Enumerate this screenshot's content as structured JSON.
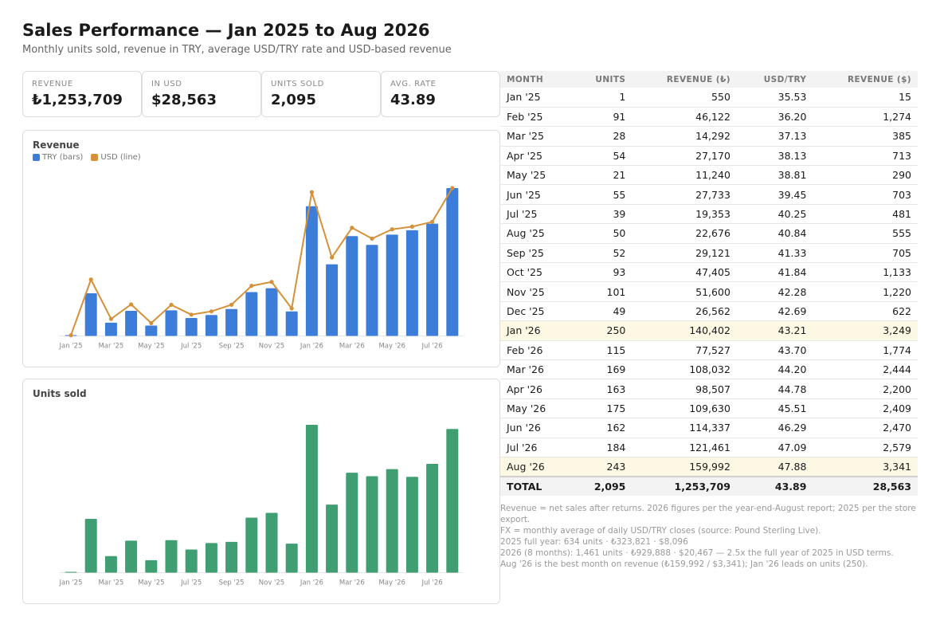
{
  "title": "Sales Performance — Jan 2025 to Aug 2026",
  "subtitle": "Monthly units sold, revenue in TRY, average USD/TRY rate and USD-based revenue",
  "kpis": [
    {
      "label": "REVENUE",
      "value": "₺1,253,709"
    },
    {
      "label": "IN USD",
      "value": "$28,563"
    },
    {
      "label": "UNITS SOLD",
      "value": "2,095"
    },
    {
      "label": "AVG. RATE",
      "value": "43.89"
    }
  ],
  "colors": {
    "try_bar": "#3b7dd8",
    "usd_line": "#d4913a",
    "units_bar": "#3f9e72",
    "highlight_row": "#fdf8e3"
  },
  "chart_data": [
    {
      "type": "bar",
      "title": "Revenue",
      "legend": [
        "TRY (bars)",
        "USD (line)"
      ],
      "legend_position": "top-left",
      "categories": [
        "Jan '25",
        "Feb '25",
        "Mar '25",
        "Apr '25",
        "May '25",
        "Jun '25",
        "Jul '25",
        "Aug '25",
        "Sep '25",
        "Oct '25",
        "Nov '25",
        "Dec '25",
        "Jan '26",
        "Feb '26",
        "Mar '26",
        "Apr '26",
        "May '26",
        "Jun '26",
        "Jul '26",
        "Aug '26"
      ],
      "tick_labels": [
        "Jan '25",
        "Mar '25",
        "May '25",
        "Jul '25",
        "Sep '25",
        "Nov '25",
        "Jan '26",
        "Mar '26",
        "May '26",
        "Jul '26"
      ],
      "series": [
        {
          "name": "TRY (bars)",
          "type": "bar",
          "values": [
            550,
            46122,
            14292,
            27170,
            11240,
            27733,
            19353,
            22676,
            29121,
            47405,
            51600,
            26562,
            140402,
            77527,
            108032,
            98507,
            109630,
            114337,
            121461,
            159992
          ]
        },
        {
          "name": "USD (line)",
          "type": "line",
          "values": [
            15,
            1274,
            385,
            713,
            290,
            703,
            481,
            555,
            705,
            1133,
            1220,
            622,
            3249,
            1774,
            2444,
            2200,
            2409,
            2470,
            2579,
            3341
          ]
        }
      ],
      "grid": false
    },
    {
      "type": "bar",
      "title": "Units sold",
      "categories": [
        "Jan '25",
        "Feb '25",
        "Mar '25",
        "Apr '25",
        "May '25",
        "Jun '25",
        "Jul '25",
        "Aug '25",
        "Sep '25",
        "Oct '25",
        "Nov '25",
        "Dec '25",
        "Jan '26",
        "Feb '26",
        "Mar '26",
        "Apr '26",
        "May '26",
        "Jun '26",
        "Jul '26",
        "Aug '26"
      ],
      "tick_labels": [
        "Jan '25",
        "Mar '25",
        "May '25",
        "Jul '25",
        "Sep '25",
        "Nov '25",
        "Jan '26",
        "Mar '26",
        "May '26",
        "Jul '26"
      ],
      "values": [
        1,
        91,
        28,
        54,
        21,
        55,
        39,
        50,
        52,
        93,
        101,
        49,
        250,
        115,
        169,
        163,
        175,
        162,
        184,
        243
      ],
      "grid": false
    }
  ],
  "table": {
    "headers": [
      "MONTH",
      "UNITS",
      "REVENUE (₺)",
      "USD/TRY",
      "REVENUE ($)"
    ],
    "rows": [
      [
        "Jan '25",
        "1",
        "550",
        "35.53",
        "15"
      ],
      [
        "Feb '25",
        "91",
        "46,122",
        "36.20",
        "1,274"
      ],
      [
        "Mar '25",
        "28",
        "14,292",
        "37.13",
        "385"
      ],
      [
        "Apr '25",
        "54",
        "27,170",
        "38.13",
        "713"
      ],
      [
        "May '25",
        "21",
        "11,240",
        "38.81",
        "290"
      ],
      [
        "Jun '25",
        "55",
        "27,733",
        "39.45",
        "703"
      ],
      [
        "Jul '25",
        "39",
        "19,353",
        "40.25",
        "481"
      ],
      [
        "Aug '25",
        "50",
        "22,676",
        "40.84",
        "555"
      ],
      [
        "Sep '25",
        "52",
        "29,121",
        "41.33",
        "705"
      ],
      [
        "Oct '25",
        "93",
        "47,405",
        "41.84",
        "1,133"
      ],
      [
        "Nov '25",
        "101",
        "51,600",
        "42.28",
        "1,220"
      ],
      [
        "Dec '25",
        "49",
        "26,562",
        "42.69",
        "622"
      ],
      [
        "Jan '26",
        "250",
        "140,402",
        "43.21",
        "3,249"
      ],
      [
        "Feb '26",
        "115",
        "77,527",
        "43.70",
        "1,774"
      ],
      [
        "Mar '26",
        "169",
        "108,032",
        "44.20",
        "2,444"
      ],
      [
        "Apr '26",
        "163",
        "98,507",
        "44.78",
        "2,200"
      ],
      [
        "May '26",
        "175",
        "109,630",
        "45.51",
        "2,409"
      ],
      [
        "Jun '26",
        "162",
        "114,337",
        "46.29",
        "2,470"
      ],
      [
        "Jul '26",
        "184",
        "121,461",
        "47.09",
        "2,579"
      ],
      [
        "Aug '26",
        "243",
        "159,992",
        "47.88",
        "3,341"
      ]
    ],
    "highlighted_months": [
      "Jan '26",
      "Aug '26"
    ],
    "total": [
      "TOTAL",
      "2,095",
      "1,253,709",
      "43.89",
      "28,563"
    ]
  },
  "notes": [
    "Revenue = net sales after returns. 2026 figures per the year-end-August report; 2025 per the store export.",
    "FX = monthly average of daily USD/TRY closes (source: Pound Sterling Live).",
    "2025 full year: 634 units · ₺323,821 · $8,096",
    "2026 (8 months): 1,461 units · ₺929,888 · $20,467 — 2.5x the full year of 2025 in USD terms.",
    "Aug '26 is the best month on revenue (₺159,992 / $3,341); Jan '26 leads on units (250)."
  ]
}
